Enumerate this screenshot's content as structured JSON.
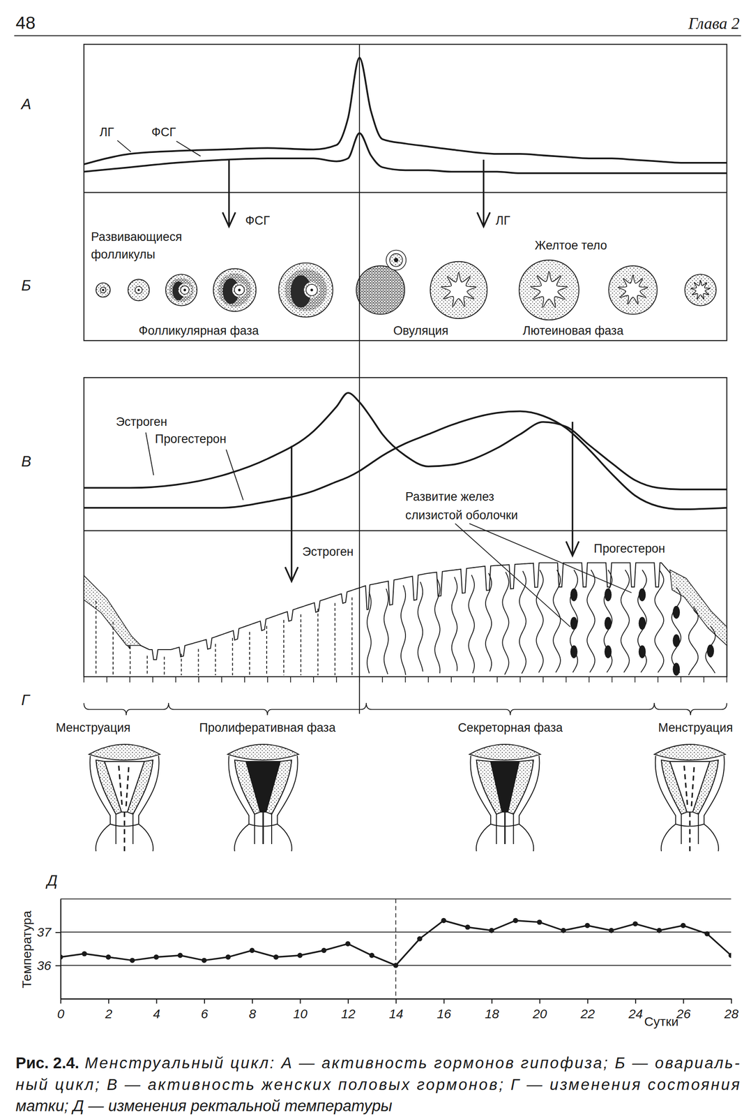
{
  "header": {
    "page_number": "48",
    "chapter": "Глава 2"
  },
  "panel_letters": [
    "А",
    "Б",
    "В",
    "Г",
    "Д"
  ],
  "chart_data": [
    {
      "type": "line",
      "x": [
        0,
        2,
        4,
        6,
        8,
        10,
        11,
        11.5,
        12,
        12.5,
        13,
        14,
        15,
        16,
        18,
        19,
        20,
        21,
        22,
        23,
        24,
        25,
        26,
        28
      ],
      "xlim": [
        0,
        28
      ],
      "ylim": [
        0,
        100
      ],
      "tick_labels": false,
      "series": [
        {
          "name": "ЛГ",
          "color": "#1a1a1a",
          "values": [
            19,
            26,
            28,
            29,
            30,
            29,
            32,
            50,
            91,
            55,
            36,
            33,
            31,
            29,
            26,
            26,
            25,
            24,
            23,
            23,
            22,
            21,
            20,
            20
          ]
        },
        {
          "name": "ФСГ",
          "color": "#1a1a1a",
          "values": [
            14,
            17,
            20,
            22,
            23,
            23,
            21,
            23,
            40,
            25,
            17,
            15,
            15,
            14,
            14,
            13,
            13,
            13,
            13,
            13,
            13,
            13,
            13,
            13
          ]
        }
      ]
    },
    {
      "type": "line",
      "x": [
        0,
        2,
        4,
        6,
        8,
        10,
        11,
        11.5,
        12,
        12.5,
        13,
        14,
        15,
        16,
        18,
        19,
        20,
        21,
        22,
        23,
        24,
        25,
        26,
        28
      ],
      "xlim": [
        0,
        28
      ],
      "ylim": [
        0,
        100
      ],
      "tick_labels": false,
      "series": [
        {
          "name": "Эстроген",
          "color": "#1a1a1a",
          "values": [
            28,
            28,
            30,
            36,
            47,
            65,
            81,
            90,
            84,
            74,
            63,
            49,
            42,
            43,
            54,
            63,
            71,
            68,
            56,
            44,
            33,
            28,
            27,
            27
          ]
        },
        {
          "name": "Прогестерон",
          "color": "#1a1a1a",
          "values": [
            15,
            15,
            15,
            15,
            19,
            26,
            32,
            35,
            39,
            44,
            49,
            57,
            63,
            69,
            77,
            78,
            75,
            67,
            53,
            37,
            23,
            16,
            14,
            15
          ]
        }
      ]
    },
    {
      "type": "line",
      "x": [
        0,
        1,
        2,
        3,
        4,
        5,
        6,
        7,
        8,
        9,
        10,
        11,
        12,
        13,
        14,
        15,
        16,
        17,
        18,
        19,
        20,
        21,
        22,
        23,
        24,
        25,
        26,
        27,
        28
      ],
      "values": [
        36.25,
        36.35,
        36.25,
        36.15,
        36.25,
        36.3,
        36.15,
        36.25,
        36.45,
        36.25,
        36.3,
        36.45,
        36.65,
        36.3,
        36.0,
        36.8,
        37.35,
        37.15,
        37.05,
        37.35,
        37.3,
        37.05,
        37.2,
        37.05,
        37.25,
        37.05,
        37.2,
        36.95,
        36.3
      ],
      "color": "#1a1a1a",
      "marker": "circle",
      "xlim": [
        0,
        28
      ],
      "ylim": [
        35,
        38
      ],
      "xticks": [
        0,
        2,
        4,
        6,
        8,
        10,
        12,
        14,
        16,
        18,
        20,
        22,
        24,
        26,
        28
      ],
      "yticks": [
        36,
        37
      ],
      "grid": true,
      "x_label": "Сутки",
      "y_label": "Температура",
      "vlines": [
        14
      ]
    }
  ],
  "ovarian_cycle": {
    "follicles_label": [
      "Развивающиеся",
      "фолликулы"
    ],
    "corpus_luteum_label": "Желтое тело",
    "phases": [
      "Фолликулярная фаза",
      "Овуляция",
      "Лютеиновая фаза"
    ],
    "arrows": [
      "ФСГ",
      "ЛГ"
    ]
  },
  "uterus": {
    "arrows": [
      "Эстроген",
      "Прогестерон"
    ],
    "glands_label": [
      "Развитие желез",
      "слизистой оболочки"
    ],
    "phases": [
      "Менструация",
      "Пролиферативная фаза",
      "Секреторная фаза",
      "Менструация"
    ]
  },
  "caption": {
    "label": "Рис. 2.4.",
    "lines": [
      "Менструальный цикл: А — активность гормонов гипофиза; Б — овариаль-",
      "ный цикл; В — активность женских половых гормонов; Г — изменения состояния",
      "матки; Д — изменения ректальной температуры"
    ]
  }
}
